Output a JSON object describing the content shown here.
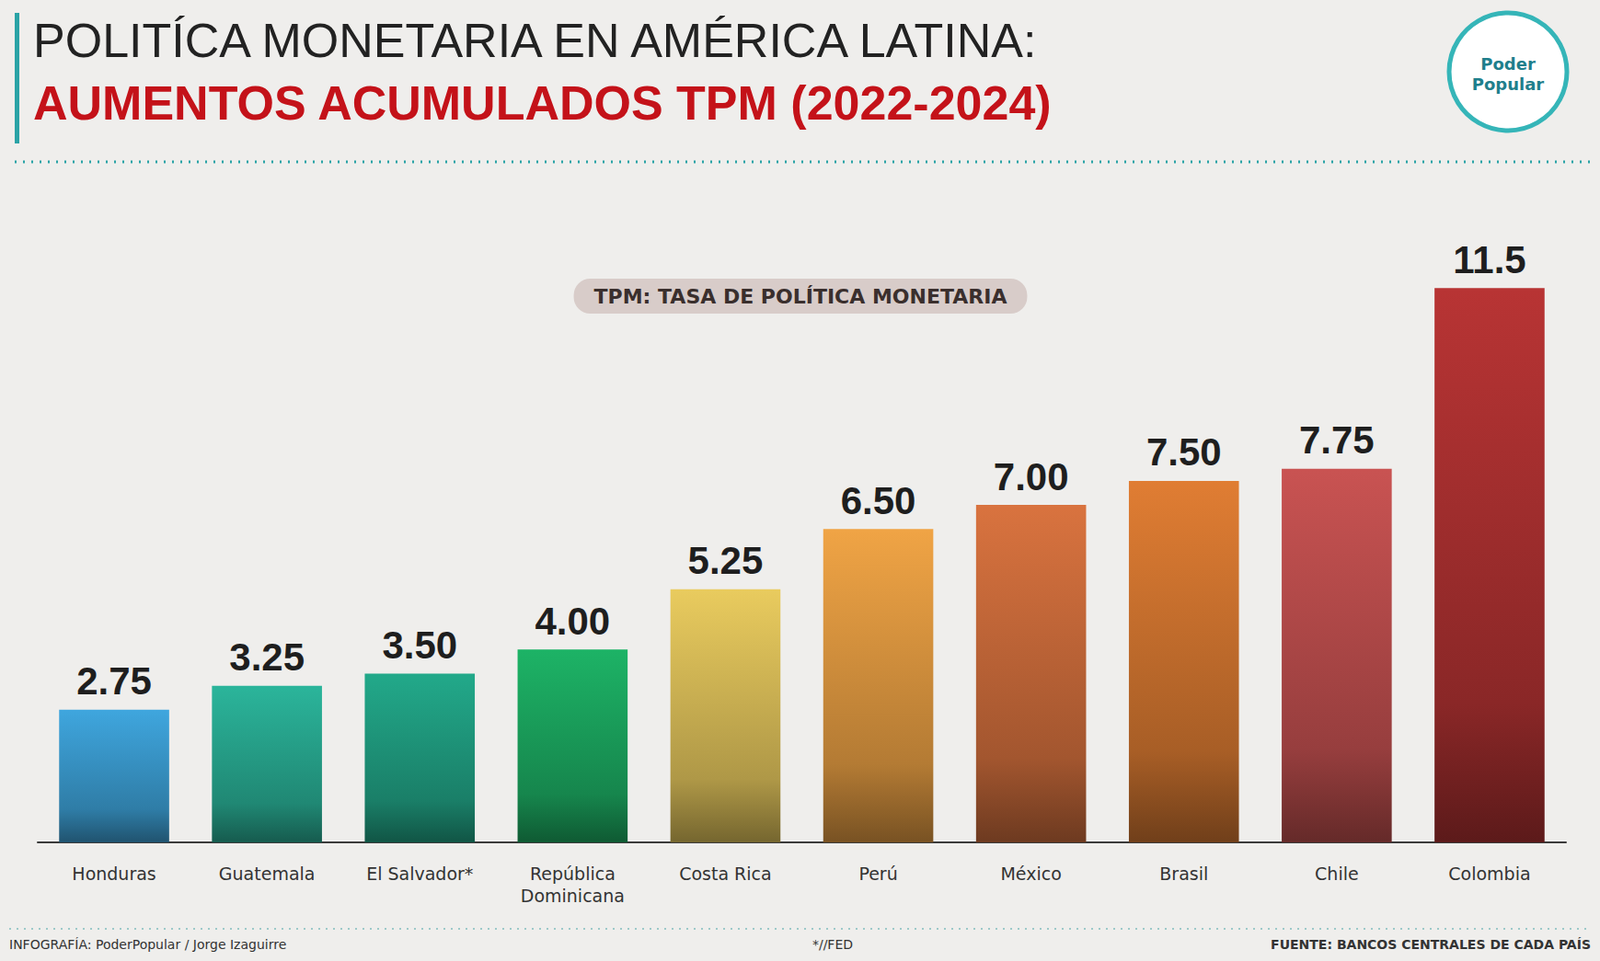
{
  "chart_data": {
    "type": "bar",
    "title": "POLITÍCA MONETARIA EN AMÉRICA LATINA:",
    "subtitle": "AUMENTOS ACUMULADOS TPM (2022-2024)",
    "annotation": "TPM: TASA DE POLÍTICA MONETARIA",
    "logo_text": "Poder Popular",
    "credit": "INFOGRAFÍA: PoderPopular / Jorge Izaguirre",
    "note": "*//FED",
    "source": "FUENTE: BANCOS CENTRALES DE CADA PAÍS",
    "categories": [
      "Honduras",
      "Guatemala",
      "El Salvador*",
      "República Dominicana",
      "Costa Rica",
      "Perú",
      "México",
      "Brasil",
      "Chile",
      "Colombia"
    ],
    "values": [
      2.75,
      3.25,
      3.5,
      4.0,
      5.25,
      6.5,
      7.0,
      7.5,
      7.75,
      11.5
    ],
    "value_labels": [
      "2.75",
      "3.25",
      "3.50",
      "4.00",
      "5.25",
      "6.50",
      "7.00",
      "7.50",
      "7.75",
      "11.5"
    ],
    "colors": [
      "#3fa6de",
      "#2bb59b",
      "#22a98a",
      "#1db366",
      "#e9cb5e",
      "#f0a445",
      "#d9733f",
      "#e07d33",
      "#c95352",
      "#b83434"
    ],
    "ylim": [
      0,
      12
    ],
    "data_labels": true,
    "tick_labels": false,
    "grid": false
  }
}
